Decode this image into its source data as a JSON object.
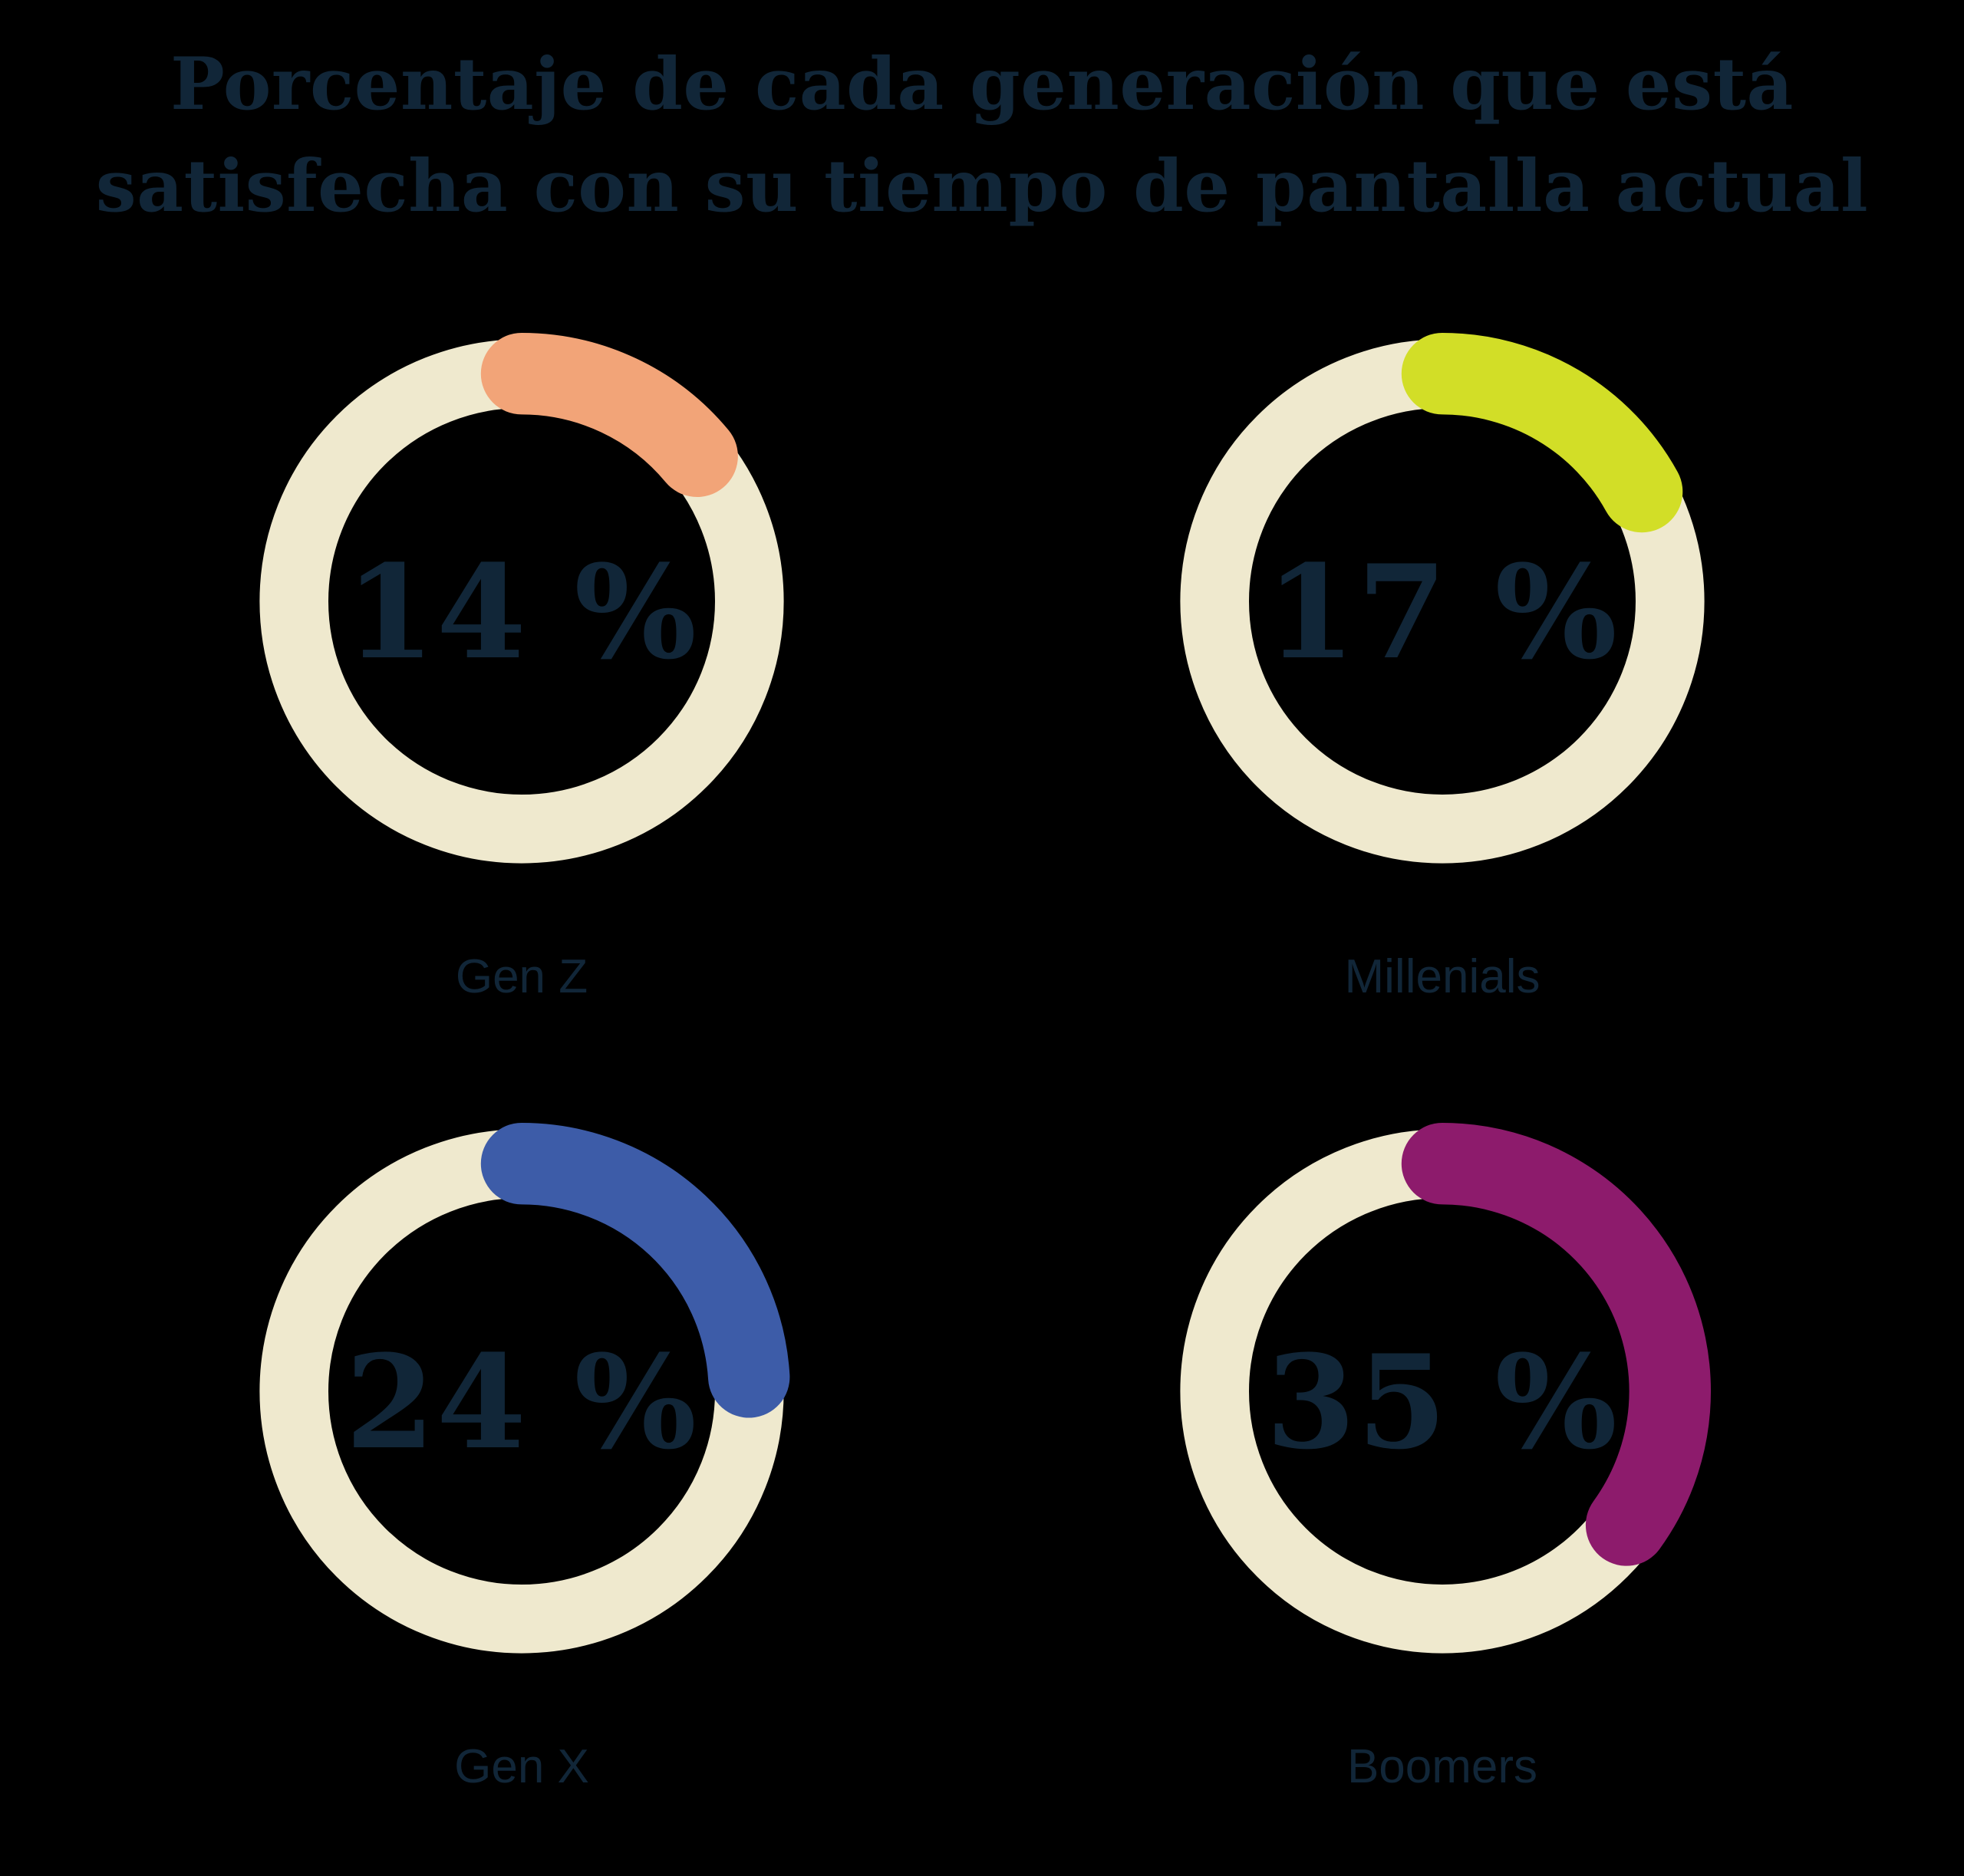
{
  "title": {
    "line1": "Porcentaje de cada generación que está",
    "line2": "satisfecha con su tiempo de pantalla actual",
    "full": "Porcentaje de cada generación que está satisfecha con su tiempo de pantalla actual"
  },
  "colors": {
    "background": "#000000",
    "text": "#112638",
    "track": "#EFE9CE"
  },
  "chart_data": {
    "type": "pie",
    "variant": "donut-gauge-grid",
    "title": "Porcentaje de cada generación que está satisfecha con su tiempo de pantalla actual",
    "unit": "%",
    "track_color": "#EFE9CE",
    "gauge_start": "top",
    "gauge_direction": "clockwise",
    "legend_position": "label-below-each-gauge",
    "categories": [
      "Gen Z",
      "Millenials",
      "Gen X",
      "Boomers"
    ],
    "values": [
      14,
      17,
      24,
      35
    ],
    "series": [
      {
        "label": "Gen Z",
        "value": 14,
        "value_label": "14 %",
        "color": "#F2A478"
      },
      {
        "label": "Millenials",
        "value": 17,
        "value_label": "17 %",
        "color": "#D2DE27"
      },
      {
        "label": "Gen X",
        "value": 24,
        "value_label": "24 %",
        "color": "#3D5CA8"
      },
      {
        "label": "Boomers",
        "value": 35,
        "value_label": "35 %",
        "color": "#8D1B6C"
      }
    ]
  }
}
